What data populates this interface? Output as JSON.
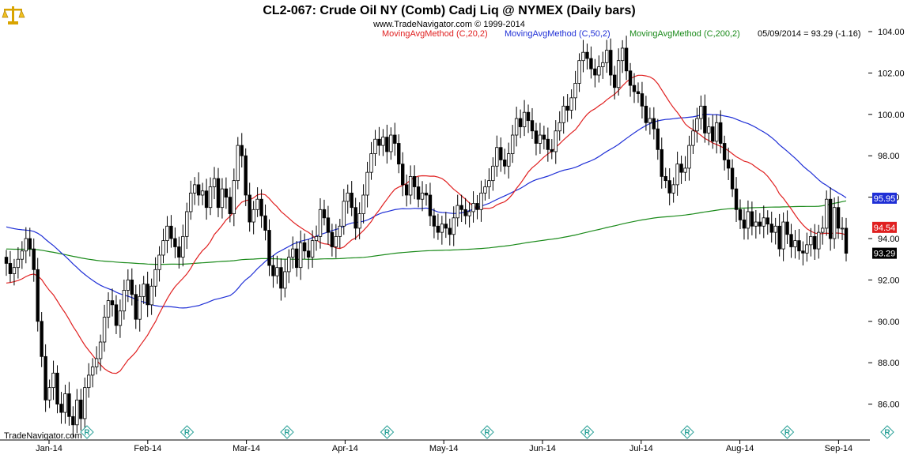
{
  "header": {
    "title": "CL2-067:  Crude Oil NY (Comb) Cadj Liq @ NYMEX  (Daily bars)",
    "copyright": "www.TradeNavigator.com © 1999-2014",
    "legend": [
      {
        "label": "MovingAvgMethod (C,20,2)",
        "color": "#e02020"
      },
      {
        "label": "MovingAvgMethod (C,50,2)",
        "color": "#1f2fd6"
      },
      {
        "label": "MovingAvgMethod (C,200,2)",
        "color": "#1a8a1a"
      }
    ],
    "last_bar": "05/09/2014 = 93.29 (-1.16)"
  },
  "footer": {
    "brand": "TradeNavigator.com"
  },
  "icons": {
    "logo": "scales-of-justice-icon",
    "event_marker": "r-marker-icon"
  },
  "chart_data": {
    "type": "candlestick",
    "y_axis": {
      "min": 85,
      "max": 104.5,
      "ticks": [
        "104.00",
        "102.00",
        "100.00",
        "98.00",
        "96.00",
        "94.00",
        "92.00",
        "90.00",
        "88.00",
        "86.00"
      ],
      "grid": false,
      "side": "right"
    },
    "x_axis": {
      "ticks": [
        "Jan-14",
        "Feb-14",
        "Mar-14",
        "Apr-14",
        "May-14",
        "Jun-14",
        "Jul-14",
        "Aug-14",
        "Sep-14"
      ]
    },
    "value_badges": [
      {
        "text": "95.95",
        "value": 95.95,
        "bg": "#1f2fd6",
        "fg": "#ffffff"
      },
      {
        "text": "94.54",
        "value": 94.54,
        "bg": "#e02020",
        "fg": "#ffffff"
      },
      {
        "text": "93.29",
        "value": 93.29,
        "bg": "#000000",
        "fg": "#ffffff"
      }
    ],
    "event_markers_count": 9,
    "closes": [
      92.8,
      92.3,
      92.6,
      93.0,
      93.4,
      94.0,
      93.5,
      92.5,
      90.0,
      88.3,
      86.2,
      86.8,
      87.5,
      86.0,
      85.6,
      86.5,
      85.4,
      85.0,
      86.2,
      85.3,
      86.8,
      87.4,
      87.8,
      88.2,
      89.0,
      90.2,
      91.0,
      90.8,
      89.8,
      90.5,
      91.5,
      92.0,
      91.3,
      90.1,
      91.2,
      91.8,
      90.8,
      91.7,
      92.5,
      93.2,
      93.9,
      94.6,
      94.0,
      93.6,
      93.1,
      94.1,
      95.3,
      96.2,
      96.6,
      96.1,
      96.3,
      95.5,
      96.5,
      96.9,
      95.5,
      96.4,
      96.0,
      95.2,
      96.8,
      98.5,
      98.0,
      96.1,
      94.8,
      95.4,
      95.9,
      95.1,
      94.4,
      92.7,
      92.2,
      92.6,
      91.6,
      92.4,
      93.1,
      93.5,
      92.6,
      93.8,
      93.4,
      93.1,
      93.9,
      94.1,
      95.4,
      95.0,
      94.3,
      93.6,
      94.1,
      94.6,
      95.8,
      96.2,
      95.5,
      94.5,
      95.2,
      96.1,
      97.2,
      98.1,
      98.8,
      98.5,
      98.9,
      98.2,
      99.0,
      98.6,
      97.6,
      96.6,
      96.1,
      97.0,
      96.5,
      95.9,
      96.2,
      96.1,
      95.1,
      94.6,
      94.3,
      94.7,
      94.5,
      94.2,
      95.0,
      95.6,
      95.4,
      95.1,
      95.3,
      95.7,
      95.4,
      96.2,
      96.5,
      96.8,
      97.5,
      98.4,
      97.8,
      97.5,
      98.1,
      99.0,
      99.8,
      99.4,
      100.1,
      99.7,
      99.2,
      98.6,
      99.0,
      98.8,
      98.3,
      98.2,
      99.2,
      99.6,
      100.4,
      100.2,
      100.8,
      101.5,
      102.6,
      103.0,
      102.7,
      102.2,
      101.9,
      102.3,
      102.5,
      103.1,
      101.9,
      101.3,
      102.6,
      103.2,
      102.1,
      101.4,
      101.1,
      101.0,
      100.4,
      99.6,
      99.8,
      99.3,
      98.3,
      97.0,
      96.8,
      96.2,
      96.6,
      97.6,
      97.2,
      97.4,
      98.5,
      99.2,
      99.8,
      100.4,
      99.1,
      99.4,
      98.7,
      99.6,
      98.6,
      97.8,
      97.4,
      96.4,
      95.4,
      94.9,
      94.5,
      95.3,
      94.6,
      94.8,
      94.6,
      95.0,
      94.7,
      94.3,
      94.6,
      93.5,
      94.8,
      94.2,
      93.6,
      93.9,
      93.4,
      93.3,
      93.7,
      94.1,
      93.5,
      94.3,
      94.5,
      95.9,
      94.0,
      95.5,
      94.5,
      94.5,
      93.29
    ]
  }
}
